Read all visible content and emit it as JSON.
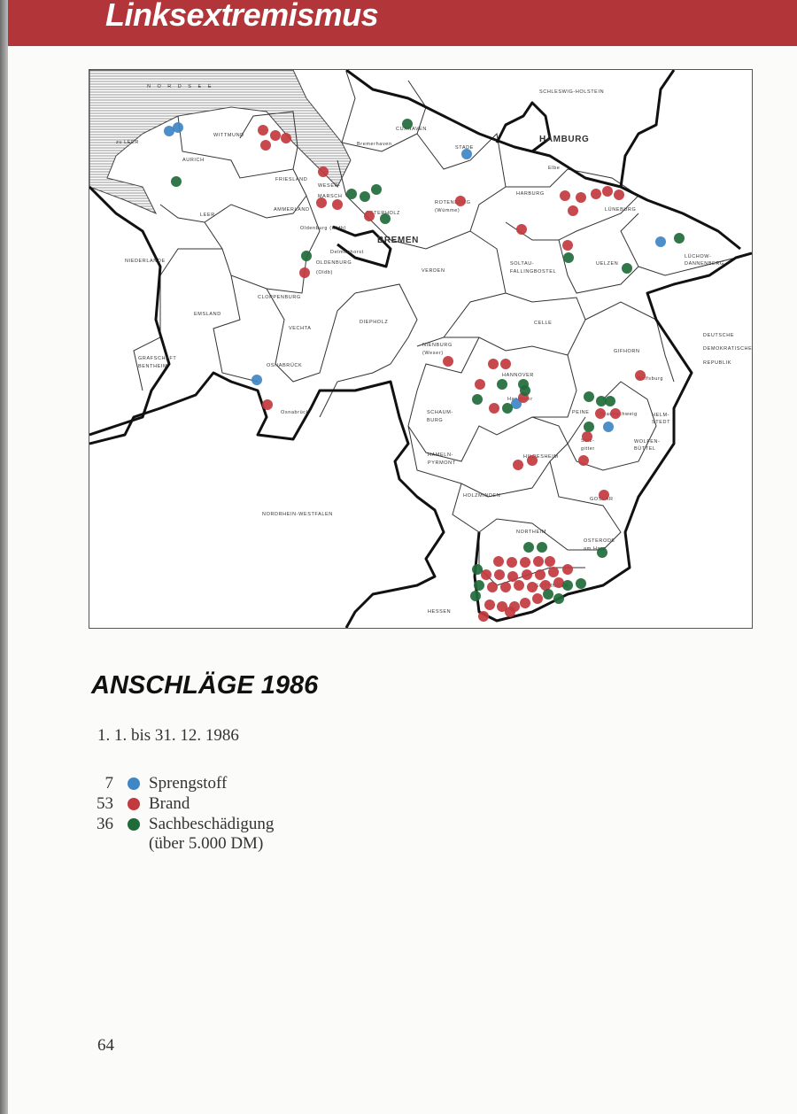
{
  "header": {
    "title": "Linksextremismus",
    "color": "#b2353a"
  },
  "map": {
    "labels": [
      "N O R D S E E",
      "zu LEER",
      "AURICH",
      "WITTMUND",
      "FRIESLAND",
      "WESER-",
      "MARSCH",
      "AMMERLAND",
      "LEER",
      "Oldenburg (Oldb)",
      "NIEDERLANDE",
      "Delmenhorst",
      "OLDENBURG",
      "(Oldb)",
      "CLOPPENBURG",
      "EMSLAND",
      "VECHTA",
      "DIEPHOLZ",
      "GRAFSCHAFT",
      "BENTHEIM",
      "OSNABRÜCK",
      "Osnabrück",
      "CUXHAVEN",
      "Bremerhaven",
      "STADE",
      "HAMBURG",
      "SCHLESWIG-HOLSTEIN",
      "ROTENBURG",
      "(Wümme)",
      "OSTERHOLZ",
      "BREMEN",
      "VERDEN",
      "HARBURG",
      "LÜNEBURG",
      "SOLTAU-",
      "FALLINGBOSTEL",
      "UELZEN",
      "LÜCHOW-",
      "DANNENBERG",
      "CELLE",
      "NIENBURG",
      "(Weser)",
      "GIFHORN",
      "DEUTSCHE",
      "DEMOKRATISCHE",
      "REPUBLIK",
      "HANNOVER",
      "Hannover",
      "SCHAUM-",
      "BURG",
      "PEINE",
      "Wolfsburg",
      "HELM-",
      "STEDT",
      "Braunschweig",
      "WOLFEN-",
      "BÜTTEL",
      "Salz-",
      "gitter",
      "HAMELN-",
      "PYRMONT",
      "HILDESHEIM",
      "HOLZMINDEN",
      "GOSLAR",
      "NORDRHEIN-WESTFALEN",
      "NORTHEIM",
      "OSTERODE",
      "am Harz",
      "GÖTTINGEN",
      "HESSEN",
      "Elbe"
    ],
    "colors": {
      "sprengstoff": "#3f86c4",
      "brand": "#c23a3e",
      "sachbeschaedigung": "#1f6b3a"
    }
  },
  "title": "ANSCHLÄGE 1986",
  "period": "1. 1. bis 31. 12. 1986",
  "legend": [
    {
      "count": "7",
      "label": "Sprengstoff",
      "color": "#3f86c4"
    },
    {
      "count": "53",
      "label": "Brand",
      "color": "#c23a3e"
    },
    {
      "count": "36",
      "label": "Sachbeschädigung",
      "color": "#1f6b3a",
      "note": "(über 5.000 DM)"
    }
  ],
  "page_number": "64"
}
